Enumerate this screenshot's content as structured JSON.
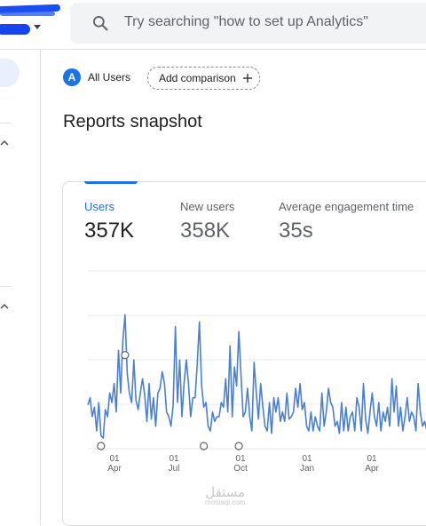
{
  "header": {
    "search_placeholder": "Try searching \"how to set up Analytics\""
  },
  "filters": {
    "segment_initial": "A",
    "segment_label": "All Users",
    "add_comparison_label": "Add comparison"
  },
  "page": {
    "title": "Reports snapshot"
  },
  "metrics": [
    {
      "label": "Users",
      "value": "357K",
      "active": true
    },
    {
      "label": "New users",
      "value": "358K",
      "active": false
    },
    {
      "label": "Average engagement time",
      "value": "35s",
      "active": false
    }
  ],
  "chart_data": {
    "type": "line",
    "x_tick_labels": [
      {
        "day": "01",
        "month": "Apr"
      },
      {
        "day": "01",
        "month": "Jul"
      },
      {
        "day": "01",
        "month": "Oct"
      },
      {
        "day": "01",
        "month": "Jan"
      },
      {
        "day": "01",
        "month": "Apr"
      }
    ],
    "series": [
      {
        "color": "#4a7fd4",
        "values": [
          17,
          20,
          12,
          16,
          6,
          18,
          4,
          3,
          15,
          12,
          22,
          18,
          26,
          14,
          40,
          22,
          44,
          55,
          30,
          22,
          18,
          36,
          19,
          15,
          22,
          28,
          21,
          10,
          26,
          11,
          20,
          8,
          22,
          24,
          31,
          26,
          14,
          12,
          8,
          17,
          50,
          18,
          36,
          12,
          26,
          36,
          26,
          12,
          20,
          20,
          34,
          52,
          25,
          16,
          18,
          8,
          6,
          14,
          10,
          12,
          12,
          18,
          16,
          28,
          14,
          42,
          12,
          33,
          25,
          48,
          30,
          12,
          14,
          24,
          12,
          6,
          35,
          22,
          11,
          26,
          16,
          8,
          6,
          18,
          5,
          20,
          14,
          20,
          10,
          14,
          10,
          22,
          11,
          12,
          14,
          24,
          16,
          26,
          15,
          18,
          8,
          6,
          14,
          6,
          12,
          8,
          6,
          22,
          8,
          14,
          24,
          18,
          16,
          8,
          10,
          5,
          18,
          6,
          16,
          6,
          12,
          14,
          6,
          20,
          16,
          6,
          26,
          11,
          5,
          14,
          22,
          12,
          8,
          18,
          6,
          14,
          10,
          16,
          8,
          28,
          14,
          25,
          8,
          16,
          6,
          12,
          20,
          10,
          14,
          12,
          6,
          26,
          14,
          8,
          10,
          6
        ]
      }
    ],
    "point_markers": [
      {
        "index": 6,
        "value": 0
      },
      {
        "index": 17,
        "value": 38
      },
      {
        "index": 53,
        "value": 0
      },
      {
        "index": 69,
        "value": 0
      }
    ],
    "y_gridlines": 5,
    "grid": true
  },
  "watermark": {
    "arabic": "مستقل",
    "latin": "mostaql.com"
  },
  "colors": {
    "accent": "#1a73e8",
    "line": "#4a7fd4"
  }
}
